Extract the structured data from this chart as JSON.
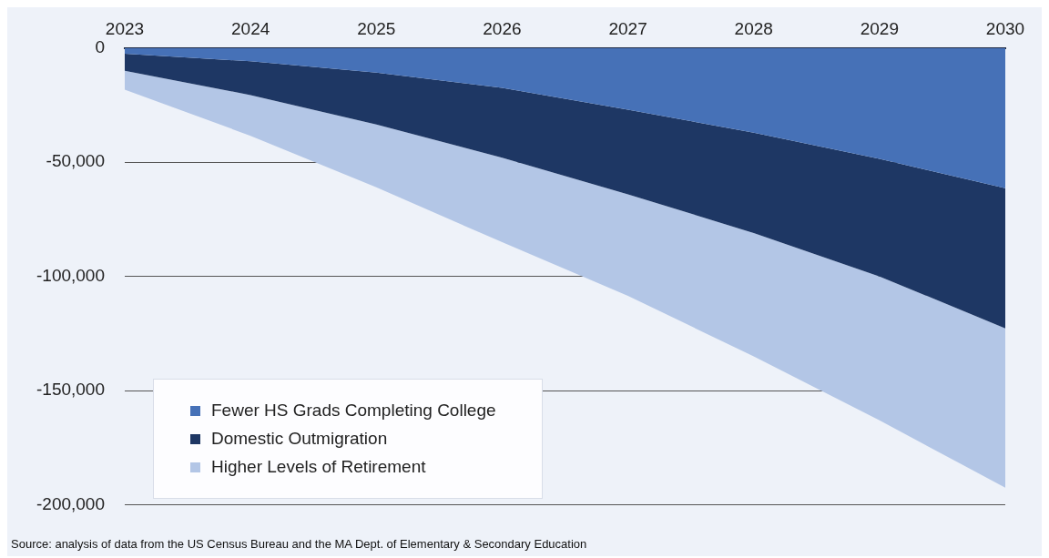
{
  "chart_data": {
    "type": "area",
    "stacked": true,
    "categories": [
      "2023",
      "2024",
      "2025",
      "2026",
      "2027",
      "2028",
      "2029",
      "2030"
    ],
    "series": [
      {
        "name": "Fewer HS Grads Completing College",
        "color": "#4671b7",
        "values": [
          -2500,
          -5800,
          -10700,
          -17400,
          -27000,
          -37000,
          -48500,
          -61400
        ]
      },
      {
        "name": "Domestic Outmigration",
        "color": "#1e3764",
        "values": [
          -7400,
          -14800,
          -22800,
          -30600,
          -37000,
          -44000,
          -51500,
          -61300
        ]
      },
      {
        "name": "Higher Levels of Retirement",
        "color": "#b3c6e6",
        "values": [
          -8300,
          -17800,
          -27500,
          -37000,
          -44500,
          -54000,
          -63000,
          -69800
        ]
      }
    ],
    "ylim": [
      -200000,
      0
    ],
    "yticks": [
      {
        "value": -200000,
        "label": "-200,000"
      },
      {
        "value": -150000,
        "label": "-150,000"
      },
      {
        "value": -100000,
        "label": "-100,000"
      },
      {
        "value": -50000,
        "label": "-50,000"
      },
      0
    ],
    "grid": "y",
    "legend": "bottom left",
    "annotations": [
      "Source: analysis of data from the US Census Bureau and the MA Dept. of Elementary & Secondary Education"
    ]
  }
}
